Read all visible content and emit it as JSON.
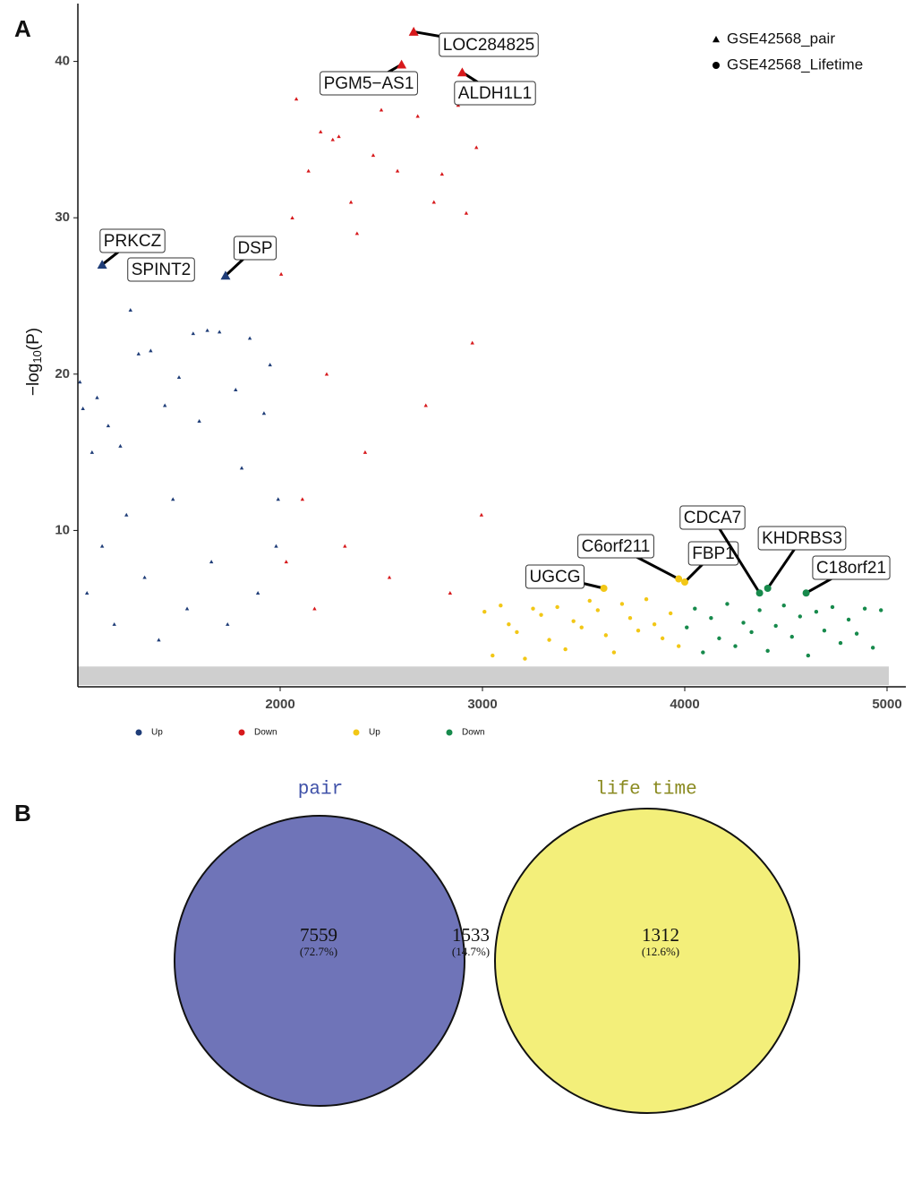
{
  "chart_data": [
    {
      "type": "scatter",
      "panel": "A",
      "y_label": {
        "prefix": "−log",
        "sub": "10",
        "suffix": "(P)"
      },
      "xlim": [
        1000,
        5090
      ],
      "ylim": [
        0,
        43.7
      ],
      "xticks": [
        2000,
        3000,
        4000,
        5000
      ],
      "yticks": [
        10,
        20,
        30,
        40
      ],
      "shape_legend": [
        {
          "name": "GSE42568_pair",
          "marker": "triangle"
        },
        {
          "name": "GSE42568_Lifetime",
          "marker": "circle"
        }
      ],
      "series": [
        {
          "name": "Up",
          "color": "#1f3d78",
          "marker": "triangle",
          "x": [
            1010,
            1025,
            1045,
            1070,
            1095,
            1120,
            1150,
            1180,
            1210,
            1240,
            1260,
            1300,
            1330,
            1360,
            1400,
            1430,
            1470,
            1500,
            1540,
            1570,
            1600,
            1640,
            1660,
            1700,
            1740,
            1780,
            1810,
            1850,
            1890,
            1920,
            1950,
            1980,
            1990
          ],
          "y": [
            19.5,
            17.8,
            6,
            15,
            18.5,
            9,
            16.7,
            4,
            15.4,
            11,
            24.1,
            21.3,
            7,
            21.5,
            3,
            18,
            12,
            19.8,
            5,
            22.6,
            17,
            22.8,
            8,
            22.7,
            4,
            19,
            14,
            22.3,
            6,
            17.5,
            20.6,
            9,
            12
          ]
        },
        {
          "name": "Down",
          "color": "#d7191c",
          "marker": "triangle",
          "x": [
            2005,
            2030,
            2060,
            2080,
            2110,
            2140,
            2170,
            2200,
            2230,
            2260,
            2290,
            2320,
            2350,
            2380,
            2420,
            2460,
            2500,
            2540,
            2580,
            2620,
            2680,
            2720,
            2760,
            2800,
            2840,
            2880,
            2920,
            2950,
            2970,
            2995
          ],
          "y": [
            26.4,
            8,
            30,
            37.6,
            12,
            33,
            5,
            35.5,
            20,
            35,
            35.2,
            9,
            31,
            29,
            15,
            34,
            36.9,
            7,
            33,
            38,
            36.5,
            18,
            31,
            32.8,
            6,
            37.2,
            30.3,
            22,
            34.5,
            11
          ]
        },
        {
          "name": "Up",
          "color": "#f2c716",
          "marker": "circle",
          "x": [
            3010,
            3050,
            3090,
            3130,
            3170,
            3210,
            3250,
            3290,
            3330,
            3370,
            3410,
            3450,
            3490,
            3530,
            3570,
            3610,
            3650,
            3690,
            3730,
            3770,
            3810,
            3850,
            3890,
            3930,
            3970
          ],
          "y": [
            4.8,
            2,
            5.2,
            4,
            3.5,
            1.8,
            5,
            4.6,
            3,
            5.1,
            2.4,
            4.2,
            3.8,
            5.5,
            4.9,
            3.3,
            2.2,
            5.3,
            4.4,
            3.6,
            5.6,
            4,
            3.1,
            4.7,
            2.6
          ]
        },
        {
          "name": "Down",
          "color": "#178a4c",
          "marker": "circle",
          "x": [
            4010,
            4050,
            4090,
            4130,
            4170,
            4210,
            4250,
            4290,
            4330,
            4370,
            4410,
            4450,
            4490,
            4530,
            4570,
            4610,
            4650,
            4690,
            4730,
            4770,
            4810,
            4850,
            4890,
            4930,
            4970
          ],
          "y": [
            3.8,
            5,
            2.2,
            4.4,
            3.1,
            5.3,
            2.6,
            4.1,
            3.5,
            4.9,
            2.3,
            3.9,
            5.2,
            3.2,
            4.5,
            2,
            4.8,
            3.6,
            5.1,
            2.8,
            4.3,
            3.4,
            5,
            2.5,
            4.9
          ]
        }
      ],
      "highlights": [
        {
          "label": "PRKCZ",
          "series": 0,
          "x": 1120,
          "y": 27
        },
        {
          "label": "SPINT2",
          "series": 0,
          "x": 1290,
          "y": 26.3
        },
        {
          "label": "DSP",
          "series": 0,
          "x": 1730,
          "y": 26.3
        },
        {
          "label": "PGM5−AS1",
          "series": 1,
          "x": 2600,
          "y": 39.8
        },
        {
          "label": "LOC284825",
          "series": 1,
          "x": 2660,
          "y": 41.9
        },
        {
          "label": "ALDH1L1",
          "series": 1,
          "x": 2900,
          "y": 39.3
        },
        {
          "label": "UGCG",
          "series": 2,
          "x": 3600,
          "y": 6.3
        },
        {
          "label": "C6orf211",
          "series": 2,
          "x": 3970,
          "y": 6.9
        },
        {
          "label": "FBP1",
          "series": 2,
          "x": 4000,
          "y": 6.7
        },
        {
          "label": "CDCA7",
          "series": 3,
          "x": 4370,
          "y": 6.0
        },
        {
          "label": "KHDRBS3",
          "series": 3,
          "x": 4410,
          "y": 6.3
        },
        {
          "label": "C18orf21",
          "series": 3,
          "x": 4600,
          "y": 6.0
        }
      ]
    },
    {
      "type": "venn",
      "panel": "B",
      "sets": [
        {
          "name": "pair",
          "color": "#6f74b8",
          "title_color": "#3f51a8"
        },
        {
          "name": "life time",
          "color": "#f3ef7a",
          "title_color": "#8a8a20"
        }
      ],
      "overlap_color": "#b9b77b",
      "regions": [
        {
          "count": 7559,
          "percent": "(72.7%)"
        },
        {
          "count": 1533,
          "percent": "(14.7%)"
        },
        {
          "count": 1312,
          "percent": "(12.6%)"
        }
      ]
    }
  ]
}
